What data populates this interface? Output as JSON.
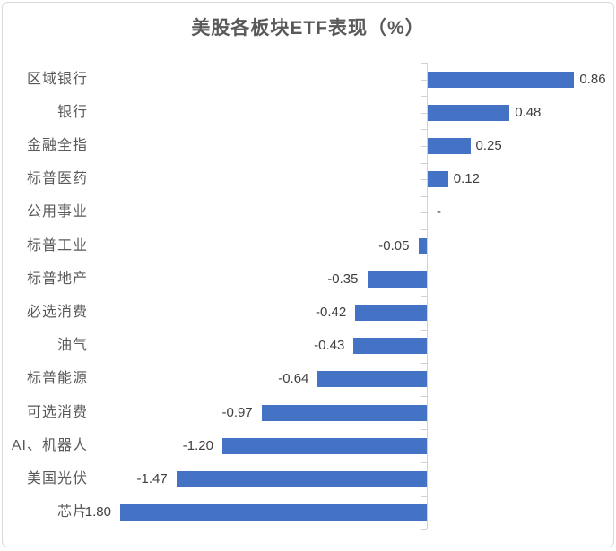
{
  "chart_data": {
    "type": "bar",
    "orientation": "horizontal",
    "title": "美股各板块ETF表现（%）",
    "xlabel": "",
    "ylabel": "",
    "categories": [
      "区域银行",
      "银行",
      "金融全指",
      "标普医药",
      "公用事业",
      "标普工业",
      "标普地产",
      "必选消费",
      "油气",
      "标普能源",
      "可选消费",
      "AI、机器人",
      "美国光伏",
      "芯片"
    ],
    "values": [
      0.86,
      0.48,
      0.25,
      0.12,
      0,
      -0.05,
      -0.35,
      -0.42,
      -0.43,
      -0.64,
      -0.97,
      -1.2,
      -1.47,
      -1.8
    ],
    "value_labels": [
      "0.86",
      "0.48",
      "0.25",
      "0.12",
      "-",
      "-0.05",
      "-0.35",
      "-0.42",
      "-0.43",
      "-0.64",
      "-0.97",
      "-1.20",
      "-1.47",
      "-1.80"
    ],
    "xlim": [
      -1.8,
      0.86
    ],
    "grid": false,
    "legend": "none",
    "data_labels": "outside-end",
    "bar_color": "#4472c4"
  },
  "colors": {
    "bar": "#4472c4",
    "title_text": "#595959",
    "category_text": "#595959",
    "value_text": "#404040",
    "axis": "#d2d2d2",
    "frame_border": "#d9d9d9",
    "background": "#ffffff"
  }
}
